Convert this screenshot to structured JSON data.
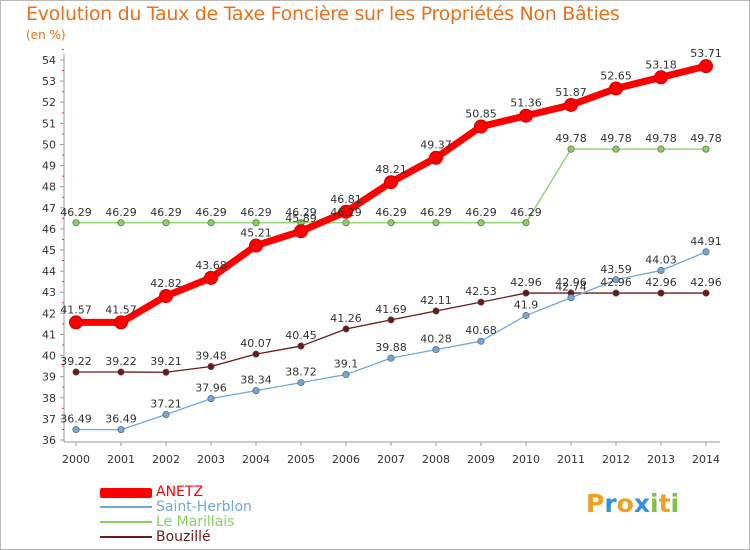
{
  "header": {
    "title": "Evolution du Taux de Taxe Foncière sur les Propriétés Non Bâties",
    "unit": "(en %)"
  },
  "chart_data": {
    "type": "line",
    "title": "Evolution du Taux de Taxe Foncière sur les Propriétés Non Bâties",
    "ylabel": "(en %)",
    "xlabel": "",
    "x": [
      "2000",
      "2001",
      "2002",
      "2003",
      "2004",
      "2005",
      "2006",
      "2007",
      "2008",
      "2009",
      "2010",
      "2011",
      "2012",
      "2013",
      "2014"
    ],
    "ylim": [
      36,
      54
    ],
    "yticks": [
      "36",
      "37",
      "38",
      "39",
      "40",
      "41",
      "42",
      "43",
      "44",
      "45",
      "46",
      "47",
      "48",
      "49",
      "50",
      "51",
      "52",
      "53",
      "54"
    ],
    "grid": false,
    "legend_position": "bottom-left",
    "series": [
      {
        "name": "ANETZ",
        "color": "#ff0000",
        "values": [
          41.57,
          41.57,
          42.82,
          43.68,
          45.21,
          45.89,
          46.81,
          48.21,
          49.37,
          50.85,
          51.36,
          51.87,
          52.65,
          53.18,
          53.71
        ],
        "labels": [
          "41.57",
          "41.57",
          "42.82",
          "43.68",
          "45.21",
          "45.89",
          "46.81",
          "48.21",
          "49.37",
          "50.85",
          "51.36",
          "51.87",
          "52.65",
          "53.18",
          "53.71"
        ]
      },
      {
        "name": "Saint-Herblon",
        "color": "#6ea8dc",
        "values": [
          36.49,
          36.49,
          37.21,
          37.96,
          38.34,
          38.72,
          39.1,
          39.88,
          40.28,
          40.68,
          41.9,
          42.74,
          43.59,
          44.03,
          44.91
        ],
        "labels": [
          "36.49",
          "36.49",
          "37.21",
          "37.96",
          "38.34",
          "38.72",
          "39.1",
          "39.88",
          "40.28",
          "40.68",
          "41.9",
          "42.74",
          "43.59",
          "44.03",
          "44.91"
        ]
      },
      {
        "name": "Le Marillais",
        "color": "#88d060",
        "values": [
          46.29,
          46.29,
          46.29,
          46.29,
          46.29,
          46.29,
          46.29,
          46.29,
          46.29,
          46.29,
          46.29,
          49.78,
          49.78,
          49.78,
          49.78
        ],
        "labels": [
          "46.29",
          "46.29",
          "46.29",
          "46.29",
          "46.29",
          "46.29",
          "46.29",
          "46.29",
          "46.29",
          "46.29",
          "46.29",
          "49.78",
          "49.78",
          "49.78",
          "49.78"
        ]
      },
      {
        "name": "Bouzillé",
        "color": "#6b1a1a",
        "values": [
          39.22,
          39.22,
          39.21,
          39.48,
          40.07,
          40.45,
          41.26,
          41.69,
          42.11,
          42.53,
          42.96,
          42.96,
          42.96,
          42.96,
          42.96
        ],
        "labels": [
          "39.22",
          "39.22",
          "39.21",
          "39.48",
          "40.07",
          "40.45",
          "41.26",
          "41.69",
          "42.11",
          "42.53",
          "42.96",
          "42.96",
          "42.96",
          "42.96",
          "42.96"
        ]
      }
    ]
  },
  "legend": {
    "items": [
      {
        "label": "ANETZ",
        "color": "#ff0000"
      },
      {
        "label": "Saint-Herblon",
        "color": "#6ea8dc"
      },
      {
        "label": "Le Marillais",
        "color": "#88d060"
      },
      {
        "label": "Bouzillé",
        "color": "#6b1a1a"
      }
    ]
  },
  "logo": {
    "text": "Proxiti",
    "letters": [
      "P",
      "r",
      "o",
      "x",
      "i",
      "t",
      "i"
    ],
    "colors": [
      "#f0a020",
      "#3b8fd6",
      "#f0a020",
      "#3b8fd6",
      "#80c040",
      "#f0a020",
      "#80c040"
    ]
  }
}
